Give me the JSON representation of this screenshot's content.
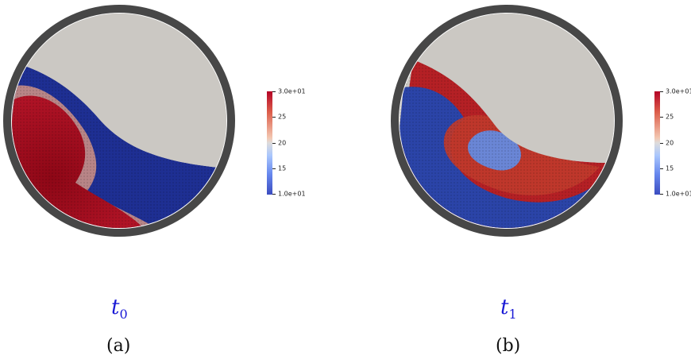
{
  "panels": [
    {
      "id": "a",
      "time_symbol": "t",
      "time_subscript": "0",
      "caption": "(a)",
      "colorbar": {
        "max_label": "3.0e+01",
        "min_label": "1.0e+01",
        "ticks": [
          "25",
          "20",
          "15"
        ]
      },
      "colors": {
        "hot": "#a50a1f",
        "cold": "#1e2f93",
        "mid": "#d9d4cf"
      }
    },
    {
      "id": "b",
      "time_symbol": "t",
      "time_subscript": "1",
      "caption": "(b)",
      "colorbar": {
        "max_label": "3.0e+01",
        "min_label": "1.0e+01",
        "ticks": [
          "25",
          "20",
          "15"
        ]
      },
      "colors": {
        "hot": "#b52025",
        "cold": "#2b44a8",
        "mid": "#d9d4cf"
      }
    }
  ],
  "colors": {
    "drum_wall": "#474747",
    "empty_space": "#cbc8c3"
  }
}
